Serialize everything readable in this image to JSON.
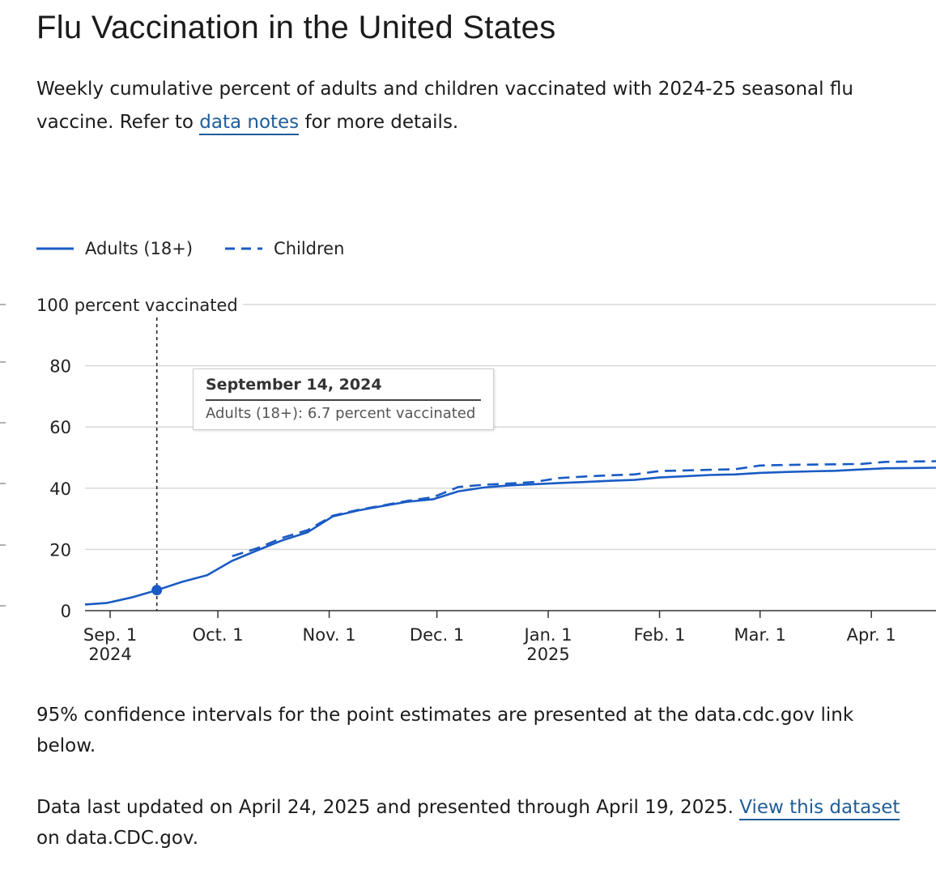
{
  "page": {
    "title": "Flu Vaccination in the United States",
    "subtitle_before": "Weekly cumulative percent of adults and children vaccinated with 2024-25 seasonal flu vaccine. Refer to ",
    "subtitle_link": "data notes",
    "subtitle_after": " for more details.",
    "note1": "95% confidence intervals for the point estimates are presented at the data.cdc.gov link below.",
    "note2_before": "Data last updated on April 24, 2025 and presented through April 19, 2025. ",
    "note2_link": "View this dataset",
    "note2_after": " on data.CDC.gov."
  },
  "legend": [
    {
      "label": "Adults (18+)",
      "style": "solid"
    },
    {
      "label": "Children",
      "style": "dashed"
    }
  ],
  "tooltip": {
    "date": "September 14, 2024",
    "series": "Adults (18+):",
    "value": "6.7 percent vaccinated"
  },
  "colors": {
    "line": "#1a5bc4",
    "link": "#1f5d99",
    "grid": "#d9d9d9",
    "axis": "#333333"
  },
  "chart_data": {
    "type": "line",
    "ylabel": "100 percent vaccinated",
    "ylim": [
      0,
      100
    ],
    "yticks": [
      0,
      20,
      40,
      60,
      80
    ],
    "xlim": [
      "2024-08-25",
      "2025-04-19"
    ],
    "xticks": [
      {
        "date": "2024-09-01",
        "label": "Sep. 1",
        "year": "2024"
      },
      {
        "date": "2024-10-01",
        "label": "Oct. 1",
        "year": ""
      },
      {
        "date": "2024-11-01",
        "label": "Nov. 1",
        "year": ""
      },
      {
        "date": "2024-12-01",
        "label": "Dec. 1",
        "year": ""
      },
      {
        "date": "2025-01-01",
        "label": "Jan. 1",
        "year": "2025"
      },
      {
        "date": "2025-02-01",
        "label": "Feb. 1",
        "year": ""
      },
      {
        "date": "2025-03-01",
        "label": "Mar. 1",
        "year": ""
      },
      {
        "date": "2025-04-01",
        "label": "Apr. 1",
        "year": ""
      }
    ],
    "highlight": {
      "date": "2024-09-14",
      "series": "Adults (18+)",
      "value": 6.7
    },
    "series": [
      {
        "name": "Adults (18+)",
        "style": "solid",
        "points": [
          [
            "2024-08-25",
            2.0
          ],
          [
            "2024-08-31",
            2.5
          ],
          [
            "2024-09-07",
            4.3
          ],
          [
            "2024-09-14",
            6.7
          ],
          [
            "2024-09-21",
            9.4
          ],
          [
            "2024-09-28",
            11.6
          ],
          [
            "2024-10-05",
            16.3
          ],
          [
            "2024-10-12",
            19.7
          ],
          [
            "2024-10-19",
            23.0
          ],
          [
            "2024-10-26",
            25.6
          ],
          [
            "2024-11-02",
            30.8
          ],
          [
            "2024-11-09",
            32.7
          ],
          [
            "2024-11-16",
            34.2
          ],
          [
            "2024-11-23",
            35.6
          ],
          [
            "2024-11-30",
            36.4
          ],
          [
            "2024-12-07",
            39.0
          ],
          [
            "2024-12-14",
            40.2
          ],
          [
            "2024-12-21",
            40.9
          ],
          [
            "2024-12-28",
            41.3
          ],
          [
            "2025-01-04",
            41.7
          ],
          [
            "2025-01-11",
            42.0
          ],
          [
            "2025-01-18",
            42.4
          ],
          [
            "2025-01-25",
            42.7
          ],
          [
            "2025-02-01",
            43.5
          ],
          [
            "2025-02-08",
            43.9
          ],
          [
            "2025-02-15",
            44.3
          ],
          [
            "2025-02-22",
            44.5
          ],
          [
            "2025-03-01",
            45.0
          ],
          [
            "2025-03-08",
            45.3
          ],
          [
            "2025-03-15",
            45.5
          ],
          [
            "2025-03-22",
            45.7
          ],
          [
            "2025-03-29",
            46.1
          ],
          [
            "2025-04-05",
            46.5
          ],
          [
            "2025-04-12",
            46.6
          ],
          [
            "2025-04-19",
            46.7
          ]
        ]
      },
      {
        "name": "Children",
        "style": "dashed",
        "points": [
          [
            "2024-10-05",
            17.8
          ],
          [
            "2024-10-12",
            20.4
          ],
          [
            "2024-10-19",
            23.8
          ],
          [
            "2024-10-26",
            26.3
          ],
          [
            "2024-11-02",
            31.0
          ],
          [
            "2024-11-09",
            32.9
          ],
          [
            "2024-11-16",
            34.4
          ],
          [
            "2024-11-23",
            35.9
          ],
          [
            "2024-11-30",
            37.1
          ],
          [
            "2024-12-07",
            40.4
          ],
          [
            "2024-12-14",
            41.1
          ],
          [
            "2024-12-21",
            41.5
          ],
          [
            "2024-12-28",
            42.0
          ],
          [
            "2025-01-04",
            43.3
          ],
          [
            "2025-01-11",
            43.8
          ],
          [
            "2025-01-18",
            44.2
          ],
          [
            "2025-01-25",
            44.5
          ],
          [
            "2025-02-01",
            45.6
          ],
          [
            "2025-02-08",
            45.8
          ],
          [
            "2025-02-15",
            46.0
          ],
          [
            "2025-02-22",
            46.2
          ],
          [
            "2025-03-01",
            47.4
          ],
          [
            "2025-03-08",
            47.6
          ],
          [
            "2025-03-15",
            47.7
          ],
          [
            "2025-03-22",
            47.8
          ],
          [
            "2025-03-29",
            47.9
          ],
          [
            "2025-04-05",
            48.6
          ],
          [
            "2025-04-12",
            48.7
          ],
          [
            "2025-04-19",
            48.8
          ]
        ]
      }
    ]
  }
}
